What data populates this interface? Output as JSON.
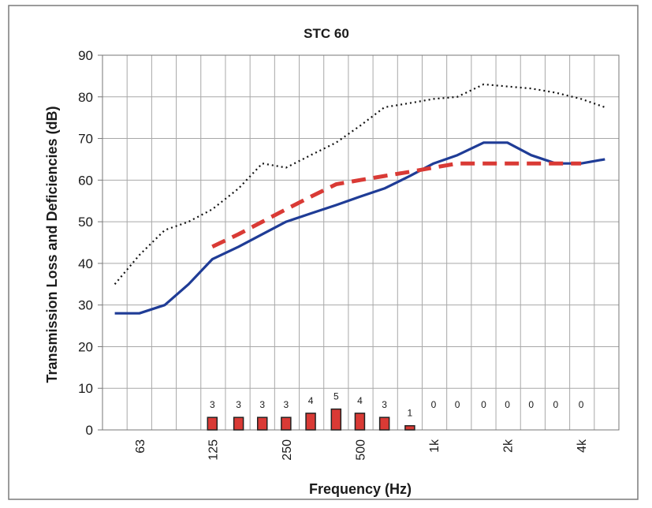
{
  "chart_data": {
    "type": "line",
    "title": "STC 60",
    "xlabel": "Frequency (Hz)",
    "ylabel": "Transmission Loss and Deficiencies (dB)",
    "ylim": [
      0,
      90
    ],
    "yticks": [
      0,
      10,
      20,
      30,
      40,
      50,
      60,
      70,
      80,
      90
    ],
    "grid": true,
    "legend": "none",
    "x_frequencies_hz": [
      50,
      63,
      80,
      100,
      125,
      160,
      200,
      250,
      315,
      400,
      500,
      630,
      800,
      1000,
      1250,
      1600,
      2000,
      2500,
      3150,
      4000,
      5000
    ],
    "x_tick_labels": [
      {
        "freq": 63,
        "label": "63"
      },
      {
        "freq": 125,
        "label": "125"
      },
      {
        "freq": 250,
        "label": "250"
      },
      {
        "freq": 500,
        "label": "500"
      },
      {
        "freq": 1000,
        "label": "1k"
      },
      {
        "freq": 2000,
        "label": "2k"
      },
      {
        "freq": 4000,
        "label": "4k"
      }
    ],
    "series": [
      {
        "key": "upper_dotted",
        "color": "#111111",
        "style": "dotted",
        "x": [
          50,
          63,
          80,
          100,
          125,
          160,
          200,
          250,
          315,
          400,
          500,
          630,
          800,
          1000,
          1250,
          1600,
          2000,
          2500,
          3150,
          4000,
          5000
        ],
        "values": [
          35,
          42,
          48,
          50,
          53,
          58,
          64,
          63,
          66,
          69,
          73,
          77.5,
          78.5,
          79.5,
          80,
          83,
          82.5,
          82,
          81,
          79.5,
          77.5
        ]
      },
      {
        "key": "measured",
        "color": "#1f3c96",
        "style": "solid",
        "x": [
          50,
          63,
          80,
          100,
          125,
          160,
          200,
          250,
          315,
          400,
          500,
          630,
          800,
          1000,
          1250,
          1600,
          2000,
          2500,
          3150,
          4000,
          5000
        ],
        "values": [
          28,
          28,
          30,
          35,
          41,
          44,
          47,
          50,
          52,
          54,
          56,
          58,
          61,
          64,
          66,
          69,
          69,
          66,
          64,
          64,
          65
        ]
      },
      {
        "key": "reference_contour",
        "color": "#d93a35",
        "style": "dashed",
        "x": [
          125,
          160,
          200,
          250,
          315,
          400,
          500,
          630,
          800,
          1000,
          1250,
          1600,
          2000,
          2500,
          3150,
          4000
        ],
        "values": [
          44,
          47,
          50,
          53,
          56,
          59,
          60,
          61,
          62,
          63,
          64,
          64,
          64,
          64,
          64,
          64
        ]
      }
    ],
    "deficiencies": {
      "color": "#d93a35",
      "x": [
        125,
        160,
        200,
        250,
        315,
        400,
        500,
        630,
        800,
        1000,
        1250,
        1600,
        2000,
        2500,
        3150,
        4000
      ],
      "values": [
        3,
        3,
        3,
        3,
        4,
        5,
        4,
        3,
        1,
        0,
        0,
        0,
        0,
        0,
        0,
        0
      ],
      "labels": [
        "3",
        "3",
        "3",
        "3",
        "4",
        "5",
        "4",
        "3",
        "1",
        "0",
        "0",
        "0",
        "0",
        "0",
        "0",
        "0"
      ]
    }
  }
}
